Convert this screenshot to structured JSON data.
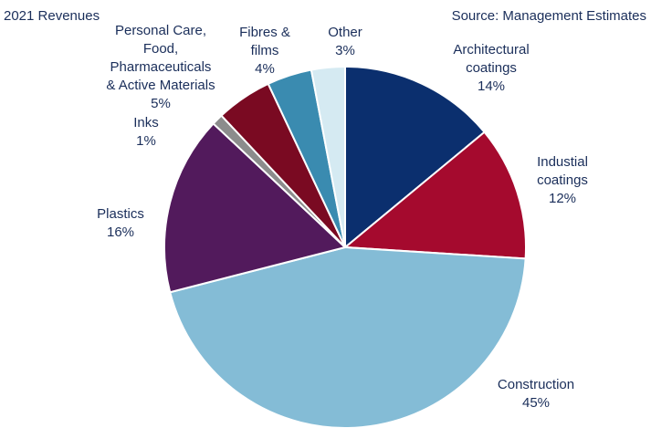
{
  "chart_data": {
    "type": "pie",
    "title": "2021 Revenues",
    "subtitle": "Source: Management Estimates",
    "categories": [
      "Architectural\ncoatings",
      "Industial\ncoatings",
      "Construction",
      "Plastics",
      "Inks",
      "Personal Care,\nFood,\nPharmaceuticals\n& Active Materials",
      "Fibres &\nfilms",
      "Other"
    ],
    "values": [
      14,
      12,
      45,
      16,
      1,
      5,
      4,
      3
    ],
    "value_labels": [
      "14%",
      "12%",
      "45%",
      "16%",
      "1%",
      "5%",
      "4%",
      "3%"
    ],
    "colors": [
      "#0b2f6e",
      "#a50a2e",
      "#84bcd6",
      "#521a5c",
      "#8c8c8c",
      "#7a0a22",
      "#3a8bb0",
      "#d5eaf2"
    ]
  }
}
